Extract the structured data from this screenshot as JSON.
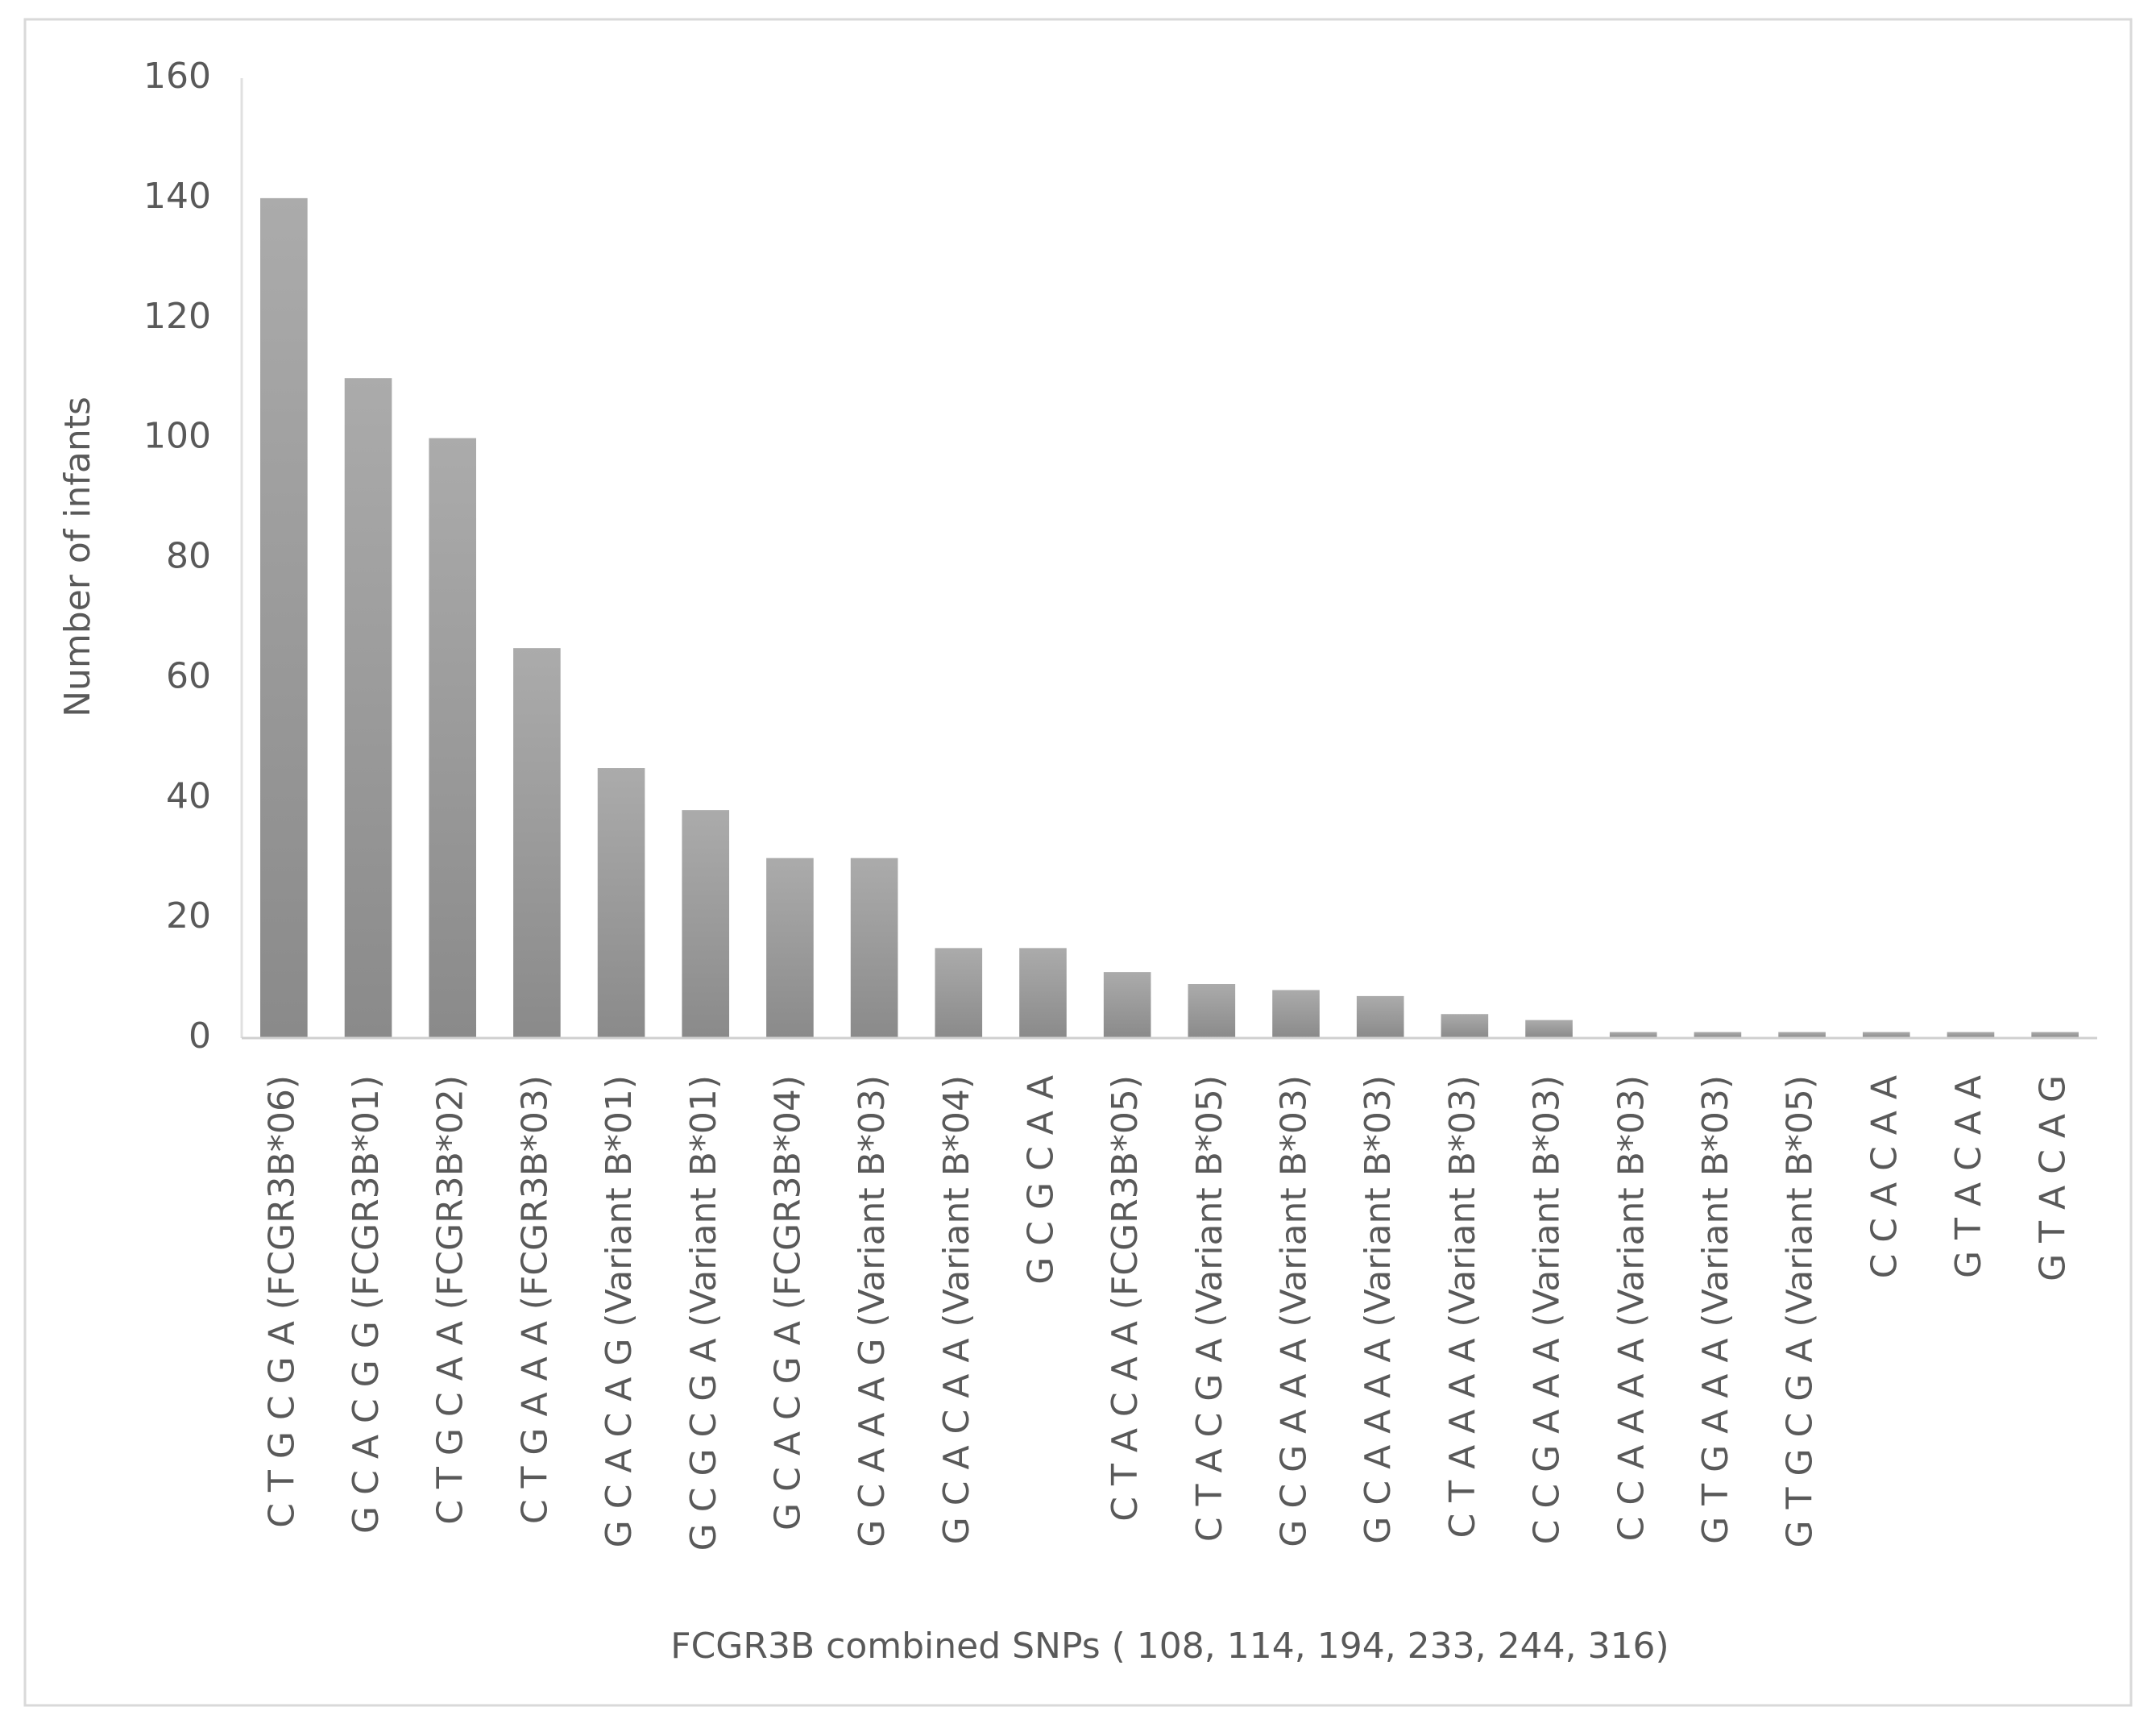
{
  "chart_data": {
    "type": "bar",
    "categories": [
      "C T G C G A (FCGR3B*06)",
      "G C A C G G (FCGR3B*01)",
      "C T G C A A (FCGR3B*02)",
      "C T G A A A (FCGR3B*03)",
      "G C A C A G (Variant B*01)",
      "G C G C G A (Variant B*01)",
      "G C A C G A (FCGR3B*04)",
      "G C A A A G (Variant B*03)",
      "G C A C A A (Variant B*04)",
      "G C G C A A",
      "C T A C A A (FCGR3B*05)",
      "C T A C G A (Variant B*05)",
      "G C G A A A (Variant B*03)",
      "G C A A A A (Variant B*03)",
      "C T A A A A (Variant B*03)",
      "C C G A A A (Variant B*03)",
      "C C A A A A (Variant B*03)",
      "G T G A A A (Variant B*03)",
      "G T G C G A (Variant B*05)",
      "C C A C A A",
      "G T A C A A",
      "G T A C A G"
    ],
    "values": [
      140,
      110,
      100,
      65,
      45,
      38,
      30,
      30,
      15,
      15,
      11,
      9,
      8,
      7,
      4,
      3,
      1,
      1,
      1,
      1,
      1,
      1
    ],
    "color": "#999999",
    "x_label": "FCGR3B combined SNPs ( 108, 114, 194, 233, 244, 316)",
    "y_label": "Number of infants",
    "ylim": [
      0,
      160
    ],
    "yticks": [
      0,
      20,
      40,
      60,
      80,
      100,
      120,
      140,
      160
    ],
    "grid": false
  }
}
